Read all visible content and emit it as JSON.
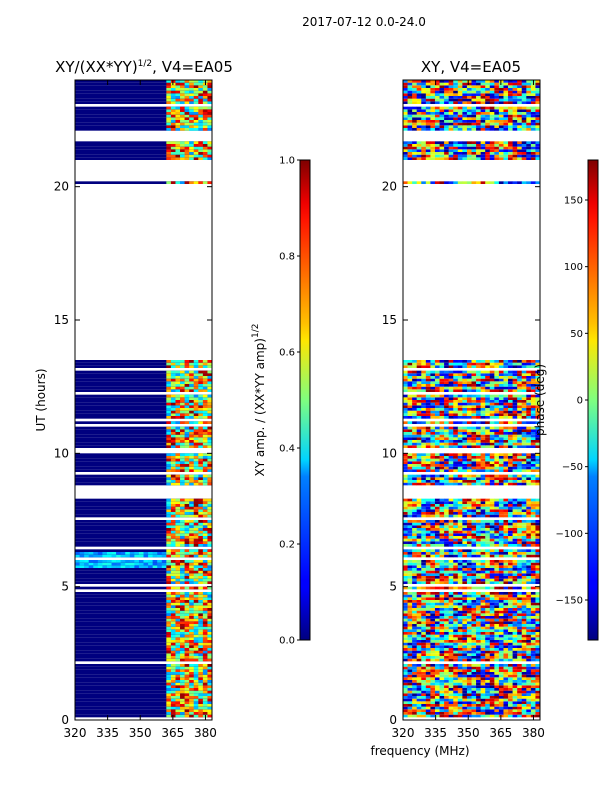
{
  "suptitle": "2017-07-12 0.0-24.0",
  "chart_data": [
    {
      "type": "heatmap",
      "title_prefix": "XY/(XX*YY)",
      "title_exponent": "1/2",
      "title_suffix": ", V4=EA05",
      "xlabel": "",
      "ylabel": "UT (hours)",
      "xlim": [
        320,
        383
      ],
      "ylim": [
        0,
        24
      ],
      "xticks": [
        "320",
        "335",
        "350",
        "365",
        "380"
      ],
      "xtick_values": [
        320,
        335,
        350,
        365,
        380
      ],
      "yticks": [
        "0",
        "5",
        "10",
        "15",
        "20"
      ],
      "ytick_values": [
        0,
        5,
        10,
        15,
        20
      ],
      "colormap": "jet",
      "colorbar": {
        "label_prefix": "XY amp. / (XX*YY amp)",
        "label_exponent": "1/2",
        "range": [
          0.0,
          1.0
        ],
        "ticks": [
          "0.0",
          "0.2",
          "0.4",
          "0.6",
          "0.8",
          "1.0"
        ],
        "tick_values": [
          0.0,
          0.2,
          0.4,
          0.6,
          0.8,
          1.0
        ]
      },
      "blank_time_ranges_hours": [
        [
          0.0,
          0.1
        ],
        [
          13.5,
          20.1
        ],
        [
          20.2,
          21.0
        ],
        [
          21.7,
          22.1
        ],
        [
          8.3,
          8.8
        ],
        [
          10.0,
          10.2
        ]
      ],
      "active_band_mhz": [
        361,
        381
      ]
    },
    {
      "type": "heatmap",
      "title": "XY, V4=EA05",
      "xlabel": "frequency (MHz)",
      "ylabel": "",
      "xlim": [
        320,
        383
      ],
      "ylim": [
        0,
        24
      ],
      "xticks": [
        "320",
        "335",
        "350",
        "365",
        "380"
      ],
      "xtick_values": [
        320,
        335,
        350,
        365,
        380
      ],
      "yticks": [
        "0",
        "5",
        "10",
        "15",
        "20"
      ],
      "ytick_values": [
        0,
        5,
        10,
        15,
        20
      ],
      "colormap": "jet",
      "colorbar": {
        "label": "phase (deg)",
        "range": [
          -180,
          180
        ],
        "ticks": [
          "−150",
          "−100",
          "−50",
          "0",
          "50",
          "100",
          "150"
        ],
        "tick_values": [
          -150,
          -100,
          -50,
          0,
          50,
          100,
          150
        ]
      },
      "blank_time_ranges_hours": [
        [
          0.0,
          0.1
        ],
        [
          13.5,
          20.1
        ],
        [
          20.2,
          21.0
        ],
        [
          21.7,
          22.1
        ],
        [
          8.3,
          8.8
        ],
        [
          10.0,
          10.2
        ]
      ]
    }
  ]
}
